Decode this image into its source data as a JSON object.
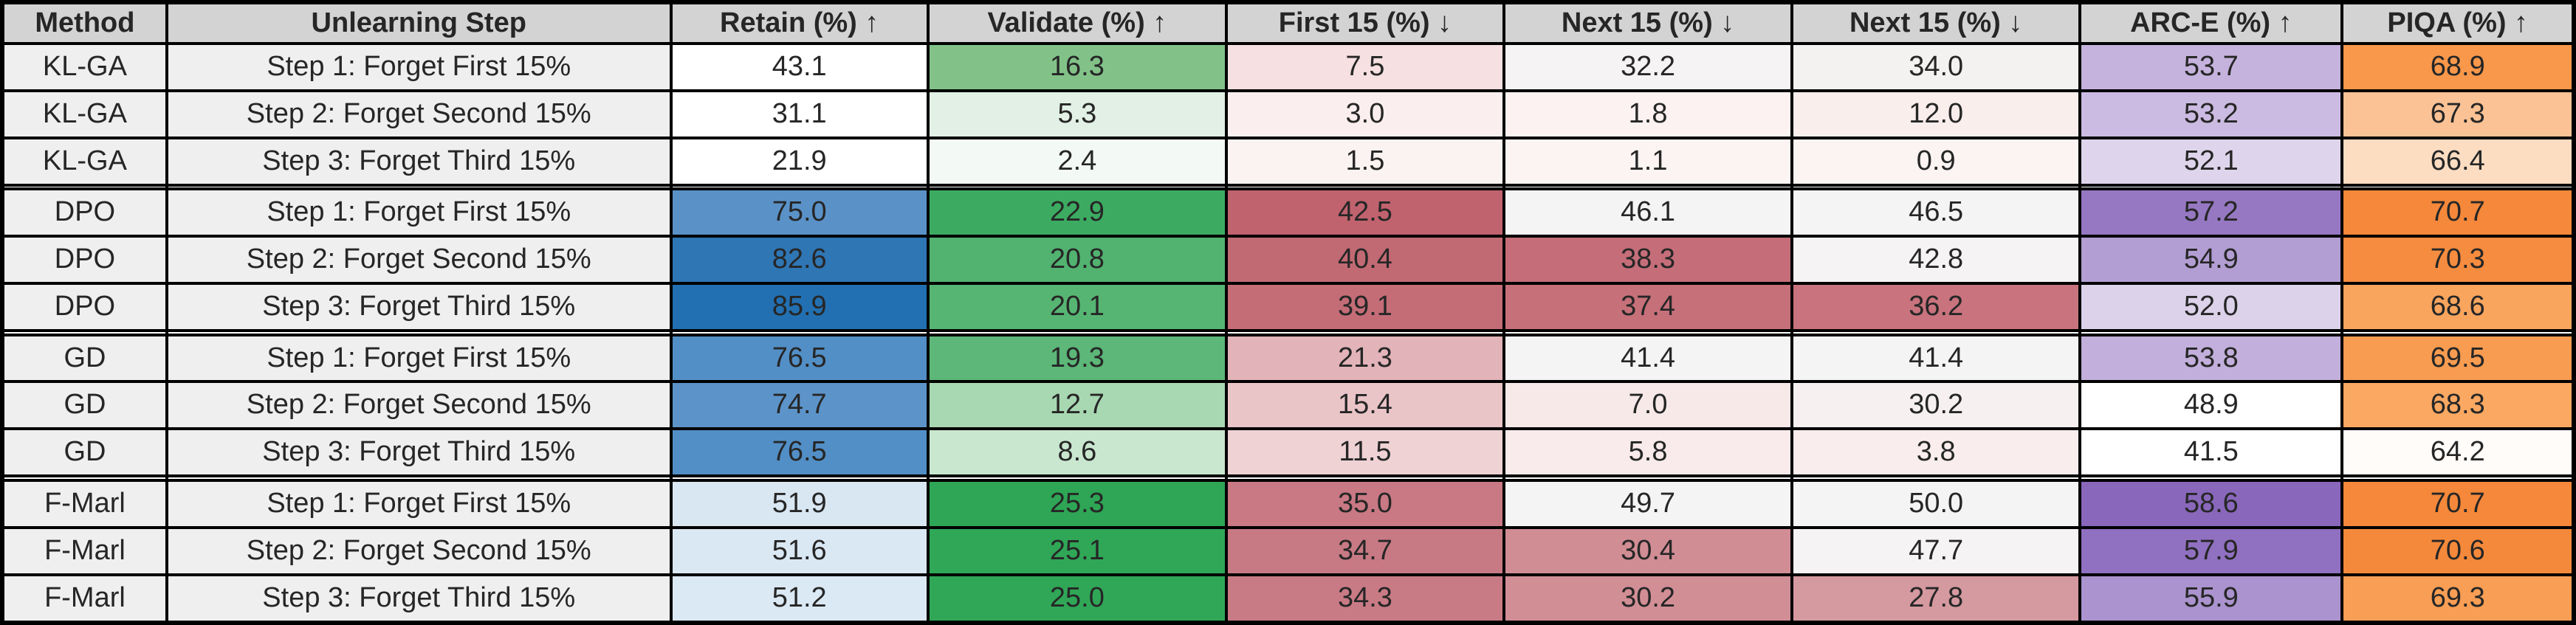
{
  "chart_data": {
    "type": "table",
    "columns": [
      "Method",
      "Unlearning Step",
      "Retain (%) ↑",
      "Validate (%) ↑",
      "First 15 (%) ↓",
      "Next 15 (%) ↓",
      "Next 15 (%) ↓",
      "ARC-E (%) ↑",
      "PIQA (%) ↑"
    ],
    "rows": [
      {
        "method": "KL-GA",
        "step": "Step 1: Forget First 15%",
        "values": [
          43.1,
          16.3,
          7.5,
          32.2,
          34.0,
          53.7,
          68.9
        ],
        "cell_colors": [
          "#ffffff",
          "#82c289",
          "#f6e0e1",
          "#f5f3f3",
          "#f4f2f1",
          "#c5b3dd",
          "#f9984b"
        ]
      },
      {
        "method": "KL-GA",
        "step": "Step 2: Forget Second 15%",
        "values": [
          31.1,
          5.3,
          3.0,
          1.8,
          12.0,
          53.2,
          67.3
        ],
        "cell_colors": [
          "#ffffff",
          "#e2f0e5",
          "#faefee",
          "#fbf2f1",
          "#f9eeec",
          "#cbbbe2",
          "#fbc295"
        ]
      },
      {
        "method": "KL-GA",
        "step": "Step 3: Forget Third 15%",
        "values": [
          21.9,
          2.4,
          1.5,
          1.1,
          0.9,
          52.1,
          66.4
        ],
        "cell_colors": [
          "#ffffff",
          "#f3f9f4",
          "#fbf3f1",
          "#fbf4f2",
          "#fbf4f2",
          "#ded5ec",
          "#fdddc2"
        ]
      },
      {
        "spacer": true
      },
      {
        "method": "DPO",
        "step": "Step 1: Forget First 15%",
        "values": [
          75.0,
          22.9,
          42.5,
          46.1,
          46.5,
          57.2,
          70.7
        ],
        "cell_colors": [
          "#5a92c8",
          "#3cab61",
          "#c0636e",
          "#f5f4f4",
          "#f5f4f4",
          "#9678c2",
          "#f5883a"
        ]
      },
      {
        "method": "DPO",
        "step": "Step 2: Forget Second 15%",
        "values": [
          82.6,
          20.8,
          40.4,
          38.3,
          42.8,
          54.9,
          70.3
        ],
        "cell_colors": [
          "#2f76b5",
          "#52b270",
          "#c26a74",
          "#c56e79",
          "#f5f3f3",
          "#b29ed3",
          "#f68c3f"
        ]
      },
      {
        "method": "DPO",
        "step": "Step 3: Forget Third 15%",
        "values": [
          85.9,
          20.1,
          39.1,
          37.4,
          36.2,
          52.0,
          68.6
        ],
        "cell_colors": [
          "#2270b1",
          "#57b573",
          "#c46d77",
          "#c6707a",
          "#c8737d",
          "#dcd2ea",
          "#f9a55e"
        ]
      },
      {
        "spacer": true
      },
      {
        "method": "GD",
        "step": "Step 1: Forget First 15%",
        "values": [
          76.5,
          19.3,
          21.3,
          41.4,
          41.4,
          53.8,
          69.5
        ],
        "cell_colors": [
          "#528fc6",
          "#5cb778",
          "#e2b3b8",
          "#f5f4f4",
          "#f5f4f4",
          "#c2afdb",
          "#f89c51"
        ]
      },
      {
        "method": "GD",
        "step": "Step 2: Forget Second 15%",
        "values": [
          74.7,
          12.7,
          15.4,
          7.0,
          30.2,
          48.9,
          68.3
        ],
        "cell_colors": [
          "#5c94c9",
          "#a8d8b2",
          "#eac5c8",
          "#f8e9e9",
          "#f6f1f0",
          "#ffffff",
          "#faa862"
        ]
      },
      {
        "method": "GD",
        "step": "Step 3: Forget Third 15%",
        "values": [
          76.5,
          8.6,
          11.5,
          5.8,
          3.8,
          41.5,
          64.2
        ],
        "cell_colors": [
          "#528fc6",
          "#c9e7cf",
          "#efd2d4",
          "#f9ebeb",
          "#f9eded",
          "#ffffff",
          "#fffcfa"
        ]
      },
      {
        "spacer": true
      },
      {
        "method": "F-Marl",
        "step": "Step 1: Forget First 15%",
        "values": [
          51.9,
          25.3,
          35.0,
          49.7,
          50.0,
          58.6,
          70.7
        ],
        "cell_colors": [
          "#d9e7f3",
          "#2ea655",
          "#c87983",
          "#f5f4f4",
          "#f5f4f4",
          "#8967bb",
          "#f5883a"
        ]
      },
      {
        "method": "F-Marl",
        "step": "Step 2: Forget Second 15%",
        "values": [
          51.6,
          25.1,
          34.7,
          30.4,
          47.7,
          57.9,
          70.6
        ],
        "cell_colors": [
          "#dae8f4",
          "#2fa757",
          "#c87a84",
          "#d18d94",
          "#f5f3f3",
          "#9070c0",
          "#f5893b"
        ]
      },
      {
        "method": "F-Marl",
        "step": "Step 3: Forget Third 15%",
        "values": [
          51.2,
          25.0,
          34.3,
          30.2,
          27.8,
          55.9,
          69.3
        ],
        "cell_colors": [
          "#dbe9f4",
          "#30a757",
          "#c97b85",
          "#d18e95",
          "#d599a0",
          "#aa93ce",
          "#f89e55"
        ]
      }
    ]
  },
  "colors": {
    "header_bg": "#d3d3d3",
    "label_bg": "#efefef",
    "spacer_bg": "#ffffff",
    "border": "#000000",
    "text": "#262626"
  }
}
